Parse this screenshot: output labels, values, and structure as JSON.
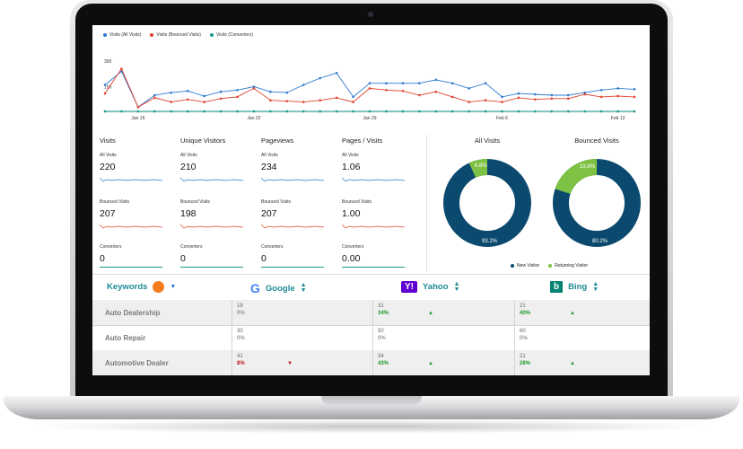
{
  "line_chart": {
    "legend": [
      {
        "label": "Visits (All Visits)",
        "color": "#2e7bcf"
      },
      {
        "label": "Visits (Bounced Visits)",
        "color": "#e0432f"
      },
      {
        "label": "Visits (Converters)",
        "color": "#1a9a8a"
      }
    ],
    "y_ticks": [
      "300",
      "150"
    ],
    "x_labels": [
      "Jan 15",
      "Jan 22",
      "Jan 29",
      "Feb 6",
      "Feb 13"
    ]
  },
  "chart_data": {
    "type": "line",
    "x": [
      "Jan 13",
      "Jan 14",
      "Jan 15",
      "Jan 16",
      "Jan 17",
      "Jan 18",
      "Jan 19",
      "Jan 20",
      "Jan 21",
      "Jan 22",
      "Jan 23",
      "Jan 24",
      "Jan 25",
      "Jan 26",
      "Jan 27",
      "Jan 28",
      "Jan 29",
      "Jan 30",
      "Jan 31",
      "Feb 1",
      "Feb 2",
      "Feb 3",
      "Feb 4",
      "Feb 5",
      "Feb 6",
      "Feb 7",
      "Feb 8",
      "Feb 9",
      "Feb 10",
      "Feb 11",
      "Feb 12",
      "Feb 13",
      "Feb 14"
    ],
    "series": [
      {
        "name": "Visits (All Visits)",
        "values": [
          160,
          240,
          30,
          100,
          115,
          125,
          95,
          120,
          130,
          150,
          120,
          115,
          160,
          200,
          230,
          90,
          170,
          170,
          170,
          170,
          190,
          170,
          140,
          170,
          90,
          110,
          105,
          100,
          100,
          115,
          130,
          140,
          135
        ]
      },
      {
        "name": "Visits (Bounced Visits)",
        "values": [
          110,
          255,
          30,
          85,
          60,
          75,
          60,
          80,
          90,
          140,
          70,
          65,
          60,
          70,
          85,
          60,
          140,
          130,
          125,
          100,
          120,
          90,
          60,
          70,
          60,
          85,
          75,
          80,
          80,
          105,
          90,
          95,
          90
        ]
      },
      {
        "name": "Visits (Converters)",
        "values": [
          5,
          5,
          5,
          5,
          5,
          5,
          5,
          5,
          5,
          5,
          5,
          5,
          5,
          5,
          5,
          5,
          5,
          5,
          5,
          5,
          5,
          5,
          5,
          5,
          5,
          5,
          5,
          5,
          5,
          5,
          5,
          5,
          5
        ]
      }
    ],
    "ylim": [
      0,
      300
    ],
    "y_ticks": [
      300,
      150
    ],
    "x_tick_labels": [
      "Jan 15",
      "Jan 22",
      "Jan 29",
      "Feb 6",
      "Feb 13"
    ]
  },
  "stats": [
    {
      "title": "Visits",
      "all_label": "All Visits",
      "all_value": "220",
      "bounced_label": "Bounced Visits",
      "bounced_value": "207",
      "conv_label": "Converters",
      "conv_value": "0"
    },
    {
      "title": "Unique Visitors",
      "all_label": "All Visits",
      "all_value": "210",
      "bounced_label": "Bounced Visits",
      "bounced_value": "198",
      "conv_label": "Converters",
      "conv_value": "0"
    },
    {
      "title": "Pageviews",
      "all_label": "All Visits",
      "all_value": "234",
      "bounced_label": "Bounced Visits",
      "bounced_value": "207",
      "conv_label": "Converters",
      "conv_value": "0"
    },
    {
      "title": "Pages / Visits",
      "all_label": "All Visits",
      "all_value": "1.06",
      "bounced_label": "Bounced Visits",
      "bounced_value": "1.00",
      "conv_label": "Converters",
      "conv_value": "0.00"
    }
  ],
  "donuts": [
    {
      "title": "All Visits",
      "new_label": "93.2%",
      "returning_label": "6.8%",
      "new_fraction": 0.932
    },
    {
      "title": "Bounced Visits",
      "new_label": "80.2%",
      "returning_label": "19.8%",
      "new_fraction": 0.802
    }
  ],
  "donut_legend": {
    "new": "New Visitor",
    "returning": "Returning Visitor",
    "new_color": "#0b4a6e",
    "returning_color": "#7dc242"
  },
  "keywords": {
    "header": {
      "keywords": "Keywords",
      "google": "Google",
      "yahoo": "Yahoo",
      "bing": "Bing"
    },
    "rows": [
      {
        "label": "Auto Dealership",
        "google": {
          "v": "18",
          "p": "0%"
        },
        "yahoo": {
          "v": "31",
          "p": "34%"
        },
        "bing": {
          "v": "21",
          "p": "40%"
        }
      },
      {
        "label": "Auto Repair",
        "google": {
          "v": "30",
          "p": "0%"
        },
        "yahoo": {
          "v": "50",
          "p": "0%"
        },
        "bing": {
          "v": "60",
          "p": "0%"
        }
      },
      {
        "label": "Automotive Dealer",
        "google": {
          "v": "41",
          "p": "8%"
        },
        "yahoo": {
          "v": "34",
          "p": "43%"
        },
        "bing": {
          "v": "21",
          "p": "28%"
        }
      }
    ]
  }
}
